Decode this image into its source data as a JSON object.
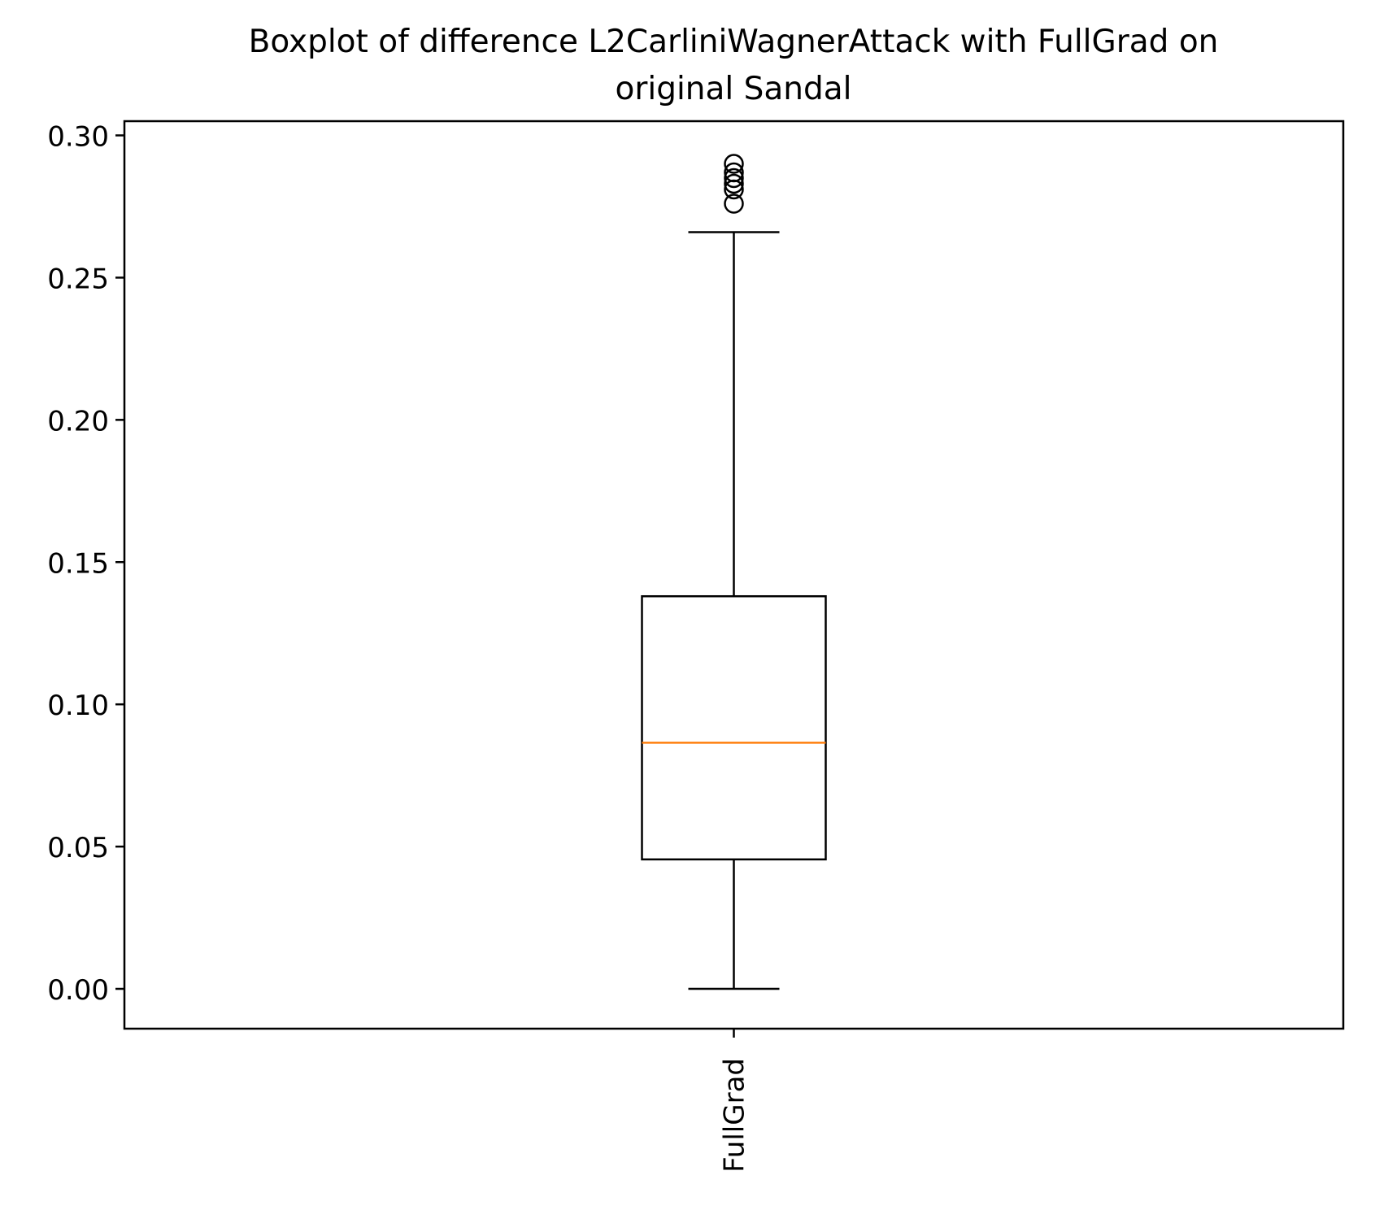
{
  "chart_data": {
    "type": "boxplot",
    "title": "Boxplot of difference L2CarliniWagnerAttack with FullGrad on\noriginal Sandal",
    "title_lines": [
      "Boxplot of difference L2CarliniWagnerAttack with FullGrad on",
      "original Sandal"
    ],
    "xlabel": "",
    "ylabel": "",
    "ylim": [
      -0.014,
      0.305
    ],
    "yticks": [
      0.0,
      0.05,
      0.1,
      0.15,
      0.2,
      0.25,
      0.3
    ],
    "ytick_labels": [
      "0.00",
      "0.05",
      "0.10",
      "0.15",
      "0.20",
      "0.25",
      "0.30"
    ],
    "grid": false,
    "categories": [
      "FullGrad"
    ],
    "boxes": [
      {
        "label": "FullGrad",
        "whisker_low": 0.0,
        "q1": 0.0455,
        "median": 0.0865,
        "q3": 0.138,
        "whisker_high": 0.266,
        "outliers": [
          0.276,
          0.281,
          0.283,
          0.285,
          0.287,
          0.29
        ]
      }
    ],
    "colors": {
      "box": "#000000",
      "median": "#ff7f0e",
      "outlier": "#000000"
    }
  }
}
